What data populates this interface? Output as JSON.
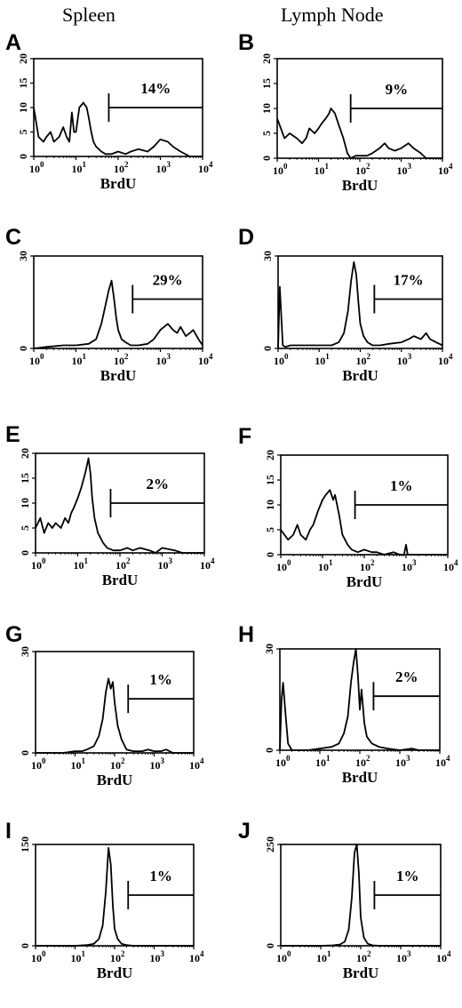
{
  "columns": [
    "Spleen",
    "Lymph Node"
  ],
  "chart_data": [
    {
      "panel": "A",
      "type": "line",
      "xlabel": "BrdU",
      "xscale": "log",
      "xlim": [
        1,
        10000
      ],
      "xticks": [
        "10^0",
        "10^1",
        "10^2",
        "10^3",
        "10^4"
      ],
      "ylim": [
        0,
        20
      ],
      "yticks": [
        0,
        5,
        10,
        15,
        20
      ],
      "gate": {
        "label": "14%",
        "x_start": 60,
        "x_end": 10000,
        "y": 10
      },
      "series": [
        {
          "x": [
            1,
            1.3,
            1.7,
            2,
            2.5,
            3,
            4,
            5,
            6,
            7,
            8,
            9,
            10,
            12,
            15,
            18,
            20,
            23,
            26,
            30,
            40,
            50,
            70,
            100,
            150,
            200,
            300,
            500,
            700,
            1000,
            1500,
            2000,
            3000,
            5000,
            10000
          ],
          "y": [
            10,
            4,
            3,
            4,
            5,
            3,
            4,
            6,
            4,
            3,
            9,
            5,
            5,
            10,
            11,
            10,
            8,
            5,
            3,
            2,
            1,
            0.5,
            0.5,
            1,
            0.5,
            1,
            1.5,
            1,
            2,
            3.5,
            3,
            2,
            1,
            0,
            0
          ]
        }
      ]
    },
    {
      "panel": "B",
      "type": "line",
      "xlabel": "BrdU",
      "xscale": "log",
      "xlim": [
        1,
        10000
      ],
      "xticks": [
        "10^0",
        "10^1",
        "10^2",
        "10^3",
        "10^4"
      ],
      "ylim": [
        0,
        20
      ],
      "yticks": [
        0,
        5,
        10,
        15,
        20
      ],
      "gate": {
        "label": "9%",
        "x_start": 60,
        "x_end": 10000,
        "y": 10
      },
      "series": [
        {
          "x": [
            1,
            1.5,
            2,
            3,
            4,
            5,
            6,
            8,
            10,
            12,
            15,
            18,
            20,
            25,
            30,
            40,
            50,
            60,
            80,
            100,
            150,
            200,
            300,
            400,
            500,
            700,
            1000,
            1500,
            2000,
            3000,
            4000,
            5000,
            10000
          ],
          "y": [
            8,
            4,
            5,
            4,
            3,
            4,
            6,
            5,
            6,
            7,
            8,
            9,
            10,
            9,
            7,
            4,
            1,
            0,
            0.5,
            0.5,
            0.5,
            1,
            2,
            3,
            2,
            1.5,
            2,
            3,
            2,
            1,
            0,
            0,
            0
          ]
        }
      ]
    },
    {
      "panel": "C",
      "type": "line",
      "xlabel": "BrdU",
      "xscale": "log",
      "xlim": [
        1,
        10000
      ],
      "xticks": [
        "10^0",
        "10^1",
        "10^2",
        "10^3",
        "10^4"
      ],
      "ylim": [
        0,
        30
      ],
      "yticks": [
        0,
        30
      ],
      "gate": {
        "label": "29%",
        "x_start": 220,
        "x_end": 10000,
        "y": 16
      },
      "series": [
        {
          "x": [
            1,
            2,
            5,
            10,
            20,
            30,
            40,
            50,
            60,
            70,
            80,
            90,
            100,
            120,
            150,
            200,
            300,
            500,
            700,
            1000,
            1500,
            2000,
            2500,
            3000,
            4000,
            5000,
            6000,
            8000,
            10000
          ],
          "y": [
            0,
            0.5,
            1,
            1,
            1.5,
            3,
            8,
            14,
            19,
            22,
            16,
            10,
            6,
            3,
            2,
            1,
            1,
            1.5,
            3,
            6,
            8,
            6,
            5,
            7,
            4,
            5,
            6,
            3,
            1
          ]
        }
      ]
    },
    {
      "panel": "D",
      "type": "line",
      "xlabel": "BrdU",
      "xscale": "log",
      "xlim": [
        1,
        10000
      ],
      "xticks": [
        "10^0",
        "10^1",
        "10^2",
        "10^3",
        "10^4"
      ],
      "ylim": [
        0,
        30
      ],
      "yticks": [
        0,
        30
      ],
      "gate": {
        "label": "17%",
        "x_start": 220,
        "x_end": 10000,
        "y": 16
      },
      "series": [
        {
          "x": [
            1,
            1.1,
            1.3,
            1.5,
            2,
            5,
            10,
            20,
            30,
            40,
            50,
            60,
            70,
            80,
            90,
            100,
            120,
            150,
            200,
            300,
            500,
            1000,
            1500,
            2000,
            3000,
            4000,
            5000,
            7000,
            10000
          ],
          "y": [
            0,
            20,
            1,
            0.5,
            1,
            1,
            1,
            1,
            2,
            5,
            12,
            22,
            28,
            24,
            15,
            8,
            4,
            2,
            1,
            1,
            1.5,
            2,
            3,
            4,
            3,
            5,
            3,
            2,
            1
          ]
        }
      ]
    },
    {
      "panel": "E",
      "type": "line",
      "xlabel": "BrdU",
      "xscale": "log",
      "xlim": [
        1,
        10000
      ],
      "xticks": [
        "10^0",
        "10^1",
        "10^2",
        "10^3",
        "10^4"
      ],
      "ylim": [
        0,
        20
      ],
      "yticks": [
        0,
        5,
        10,
        15,
        20
      ],
      "gate": {
        "label": "2%",
        "x_start": 60,
        "x_end": 10000,
        "y": 10
      },
      "series": [
        {
          "x": [
            1,
            1.3,
            1.6,
            2,
            2.5,
            3,
            4,
            5,
            6,
            7,
            8,
            10,
            12,
            15,
            18,
            20,
            22,
            25,
            30,
            40,
            50,
            70,
            100,
            150,
            200,
            300,
            500,
            700,
            1000,
            2000,
            3000,
            10000
          ],
          "y": [
            5,
            7,
            4,
            6,
            5,
            6,
            5,
            7,
            6,
            8,
            9,
            11,
            13,
            16,
            19,
            16,
            11,
            7,
            4,
            2,
            1,
            0.5,
            0.5,
            1,
            0.5,
            1,
            0.5,
            0,
            1,
            0.5,
            0,
            0
          ]
        }
      ]
    },
    {
      "panel": "F",
      "type": "line",
      "xlabel": "BrdU",
      "xscale": "log",
      "xlim": [
        1,
        10000
      ],
      "xticks": [
        "10^0",
        "10^1",
        "10^2",
        "10^3",
        "10^4"
      ],
      "ylim": [
        0,
        20
      ],
      "yticks": [
        0,
        5,
        10,
        15,
        20
      ],
      "gate": {
        "label": "1%",
        "x_start": 60,
        "x_end": 10000,
        "y": 10
      },
      "series": [
        {
          "x": [
            1,
            1.5,
            2,
            2.5,
            3,
            4,
            5,
            6,
            8,
            10,
            12,
            15,
            18,
            20,
            25,
            30,
            40,
            50,
            70,
            100,
            150,
            200,
            300,
            500,
            700,
            900,
            1000,
            1100,
            2000,
            5000,
            10000
          ],
          "y": [
            5,
            3,
            4,
            6,
            4,
            3,
            5,
            6,
            9,
            11,
            12,
            13,
            11,
            12,
            8,
            4,
            2,
            1,
            0.5,
            1,
            0.5,
            0.5,
            0,
            0.5,
            0,
            0,
            2,
            0,
            0,
            0,
            0
          ]
        }
      ]
    },
    {
      "panel": "G",
      "type": "line",
      "xlabel": "BrdU",
      "xscale": "log",
      "xlim": [
        1,
        10000
      ],
      "xticks": [
        "10^0",
        "10^1",
        "10^2",
        "10^3",
        "10^4"
      ],
      "ylim": [
        0,
        30
      ],
      "yticks": [
        0,
        30
      ],
      "gate": {
        "label": "1%",
        "x_start": 220,
        "x_end": 10000,
        "y": 16
      },
      "series": [
        {
          "x": [
            1,
            2,
            5,
            10,
            15,
            20,
            30,
            40,
            50,
            60,
            70,
            80,
            90,
            100,
            120,
            150,
            200,
            300,
            500,
            700,
            1000,
            1500,
            2000,
            3000,
            10000
          ],
          "y": [
            0,
            0,
            0,
            0.5,
            0.5,
            1,
            2,
            5,
            10,
            18,
            22,
            19,
            21,
            15,
            8,
            4,
            1,
            0.5,
            0.5,
            1,
            0.5,
            0.5,
            1,
            0,
            0
          ]
        }
      ]
    },
    {
      "panel": "H",
      "type": "line",
      "xlabel": "BrdU",
      "xscale": "log",
      "xlim": [
        1,
        10000
      ],
      "xticks": [
        "10^0",
        "10^1",
        "10^2",
        "10^3",
        "10^4"
      ],
      "ylim": [
        0,
        30
      ],
      "yticks": [
        0,
        30
      ],
      "gate": {
        "label": "2%",
        "x_start": 220,
        "x_end": 10000,
        "y": 16
      },
      "series": [
        {
          "x": [
            1,
            1.1,
            1.2,
            1.4,
            1.6,
            2,
            5,
            10,
            20,
            30,
            40,
            50,
            60,
            70,
            80,
            90,
            100,
            110,
            130,
            150,
            200,
            300,
            500,
            1000,
            2000,
            3000,
            10000
          ],
          "y": [
            0,
            15,
            20,
            10,
            2,
            0,
            0,
            0.5,
            1,
            2,
            5,
            10,
            20,
            26,
            30,
            22,
            12,
            18,
            8,
            4,
            2,
            1,
            0.5,
            0,
            0.5,
            0,
            0
          ]
        }
      ]
    },
    {
      "panel": "I",
      "type": "line",
      "xlabel": "BrdU",
      "xscale": "log",
      "xlim": [
        1,
        10000
      ],
      "xticks": [
        "10^0",
        "10^1",
        "10^2",
        "10^3",
        "10^4"
      ],
      "ylim": [
        0,
        150
      ],
      "yticks": [
        0,
        150
      ],
      "gate": {
        "label": "1%",
        "x_start": 220,
        "x_end": 10000,
        "y": 75
      },
      "series": [
        {
          "x": [
            1,
            5,
            10,
            20,
            30,
            40,
            50,
            60,
            70,
            80,
            90,
            100,
            120,
            150,
            200,
            300,
            500,
            1000,
            10000
          ],
          "y": [
            0,
            0,
            0,
            1,
            3,
            10,
            30,
            80,
            145,
            120,
            60,
            25,
            10,
            3,
            1,
            0,
            0,
            0,
            0
          ]
        }
      ]
    },
    {
      "panel": "J",
      "type": "line",
      "xlabel": "BrdU",
      "xscale": "log",
      "xlim": [
        1,
        10000
      ],
      "xticks": [
        "10^0",
        "10^1",
        "10^2",
        "10^3",
        "10^4"
      ],
      "ylim": [
        0,
        250
      ],
      "yticks": [
        0,
        250
      ],
      "gate": {
        "label": "1%",
        "x_start": 220,
        "x_end": 10000,
        "y": 125
      },
      "series": [
        {
          "x": [
            1,
            5,
            10,
            20,
            30,
            40,
            50,
            60,
            70,
            80,
            90,
            100,
            120,
            150,
            200,
            300,
            500,
            1000,
            10000
          ],
          "y": [
            0,
            0,
            0,
            1,
            3,
            10,
            40,
            120,
            230,
            260,
            180,
            70,
            20,
            5,
            1,
            0,
            0,
            0,
            0
          ]
        }
      ]
    }
  ]
}
